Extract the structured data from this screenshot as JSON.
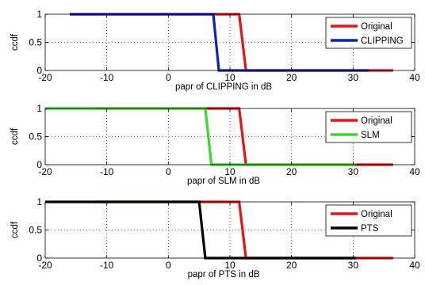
{
  "colors": {
    "original": "#ee1111",
    "clipping": "#0b1fd0",
    "slm": "#33dd22",
    "pts": "#000000",
    "axis": "#000000",
    "grid": "#000000"
  },
  "chart_data": [
    {
      "type": "line",
      "xlabel": "papr of CLIPPING  in dB",
      "ylabel": "ccdf",
      "xlim": [
        -20,
        40
      ],
      "ylim": [
        0,
        1
      ],
      "xticks": [
        "-20",
        "-10",
        "0",
        "10",
        "20",
        "30",
        "40"
      ],
      "yticks": [
        "0",
        "0.5",
        "1"
      ],
      "grid": "dotted",
      "legend_position": "top-right",
      "series": [
        {
          "name": "Original",
          "color": "#ee1111",
          "x": [
            -16,
            11.5,
            12.6,
            36.5
          ],
          "y": [
            1,
            1,
            0,
            0
          ]
        },
        {
          "name": "CLIPPING",
          "color": "#0b1fd0",
          "x": [
            -16,
            7.3,
            8.2,
            32.5
          ],
          "y": [
            1,
            1,
            0,
            0
          ]
        }
      ]
    },
    {
      "type": "line",
      "xlabel": "papr of SLM  in dB",
      "ylabel": "ccdf",
      "xlim": [
        -20,
        40
      ],
      "ylim": [
        0,
        1
      ],
      "xticks": [
        "-20",
        "-10",
        "0",
        "10",
        "20",
        "30",
        "40"
      ],
      "yticks": [
        "0",
        "0.5",
        "1"
      ],
      "grid": "dotted",
      "legend_position": "top-right",
      "series": [
        {
          "name": "Original",
          "color": "#ee1111",
          "x": [
            -12,
            11.5,
            12.6,
            36.5
          ],
          "y": [
            1,
            1,
            0,
            0
          ]
        },
        {
          "name": "SLM",
          "color": "#33dd22",
          "x": [
            -20,
            6.0,
            7.0,
            30.5
          ],
          "y": [
            1,
            1,
            0,
            0
          ]
        }
      ]
    },
    {
      "type": "line",
      "xlabel": "papr of PTS  in dB",
      "ylabel": "ccdf",
      "xlim": [
        -20,
        40
      ],
      "ylim": [
        0,
        1
      ],
      "xticks": [
        "-20",
        "-10",
        "0",
        "10",
        "20",
        "30",
        "40"
      ],
      "yticks": [
        "0",
        "0.5",
        "1"
      ],
      "grid": "dotted",
      "legend_position": "top-right",
      "series": [
        {
          "name": "Original",
          "color": "#ee1111",
          "x": [
            -12,
            11.5,
            12.6,
            36.5
          ],
          "y": [
            1,
            1,
            0,
            0
          ]
        },
        {
          "name": "PTS",
          "color": "#000000",
          "x": [
            -20,
            5.0,
            6.0,
            30.5
          ],
          "y": [
            1,
            1,
            0,
            0
          ]
        }
      ]
    }
  ]
}
